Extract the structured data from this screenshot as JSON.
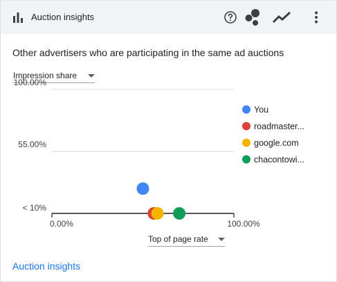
{
  "header": {
    "title": "Auction insights",
    "icons": [
      "bar-chart-icon",
      "help-icon",
      "scatter-icon",
      "trend-icon",
      "more-vert-icon"
    ]
  },
  "subtitle": "Other advertisers who are participating in the same ad auctions",
  "y_metric": {
    "selected": "Impression share"
  },
  "x_metric": {
    "selected": "Top of page rate"
  },
  "footer": {
    "link_label": "Auction insights"
  },
  "colors": {
    "accent": "#1a73e8",
    "header_bg": "#f1f3f4"
  },
  "chart_data": {
    "type": "scatter",
    "title": "",
    "xlabel": "Top of page rate",
    "ylabel": "Impression share",
    "xlim": [
      0,
      100
    ],
    "ylim": [
      10,
      100
    ],
    "x_ticks": [
      "0.00%",
      "100.00%"
    ],
    "y_ticks": [
      "< 10%",
      "55.00%",
      "100.00%"
    ],
    "y_tick_values": [
      10,
      55,
      100
    ],
    "grid": true,
    "legend_placement": "right",
    "series": [
      {
        "name": "You",
        "color": "#4285f4",
        "x": 50,
        "y": 28
      },
      {
        "name": "roadmaster...",
        "color": "#db4437",
        "x": 56,
        "y": 10
      },
      {
        "name": "google.com",
        "color": "#f4b400",
        "x": 58,
        "y": 10
      },
      {
        "name": "chacontowi...",
        "color": "#0f9d58",
        "x": 70,
        "y": 10
      }
    ]
  }
}
